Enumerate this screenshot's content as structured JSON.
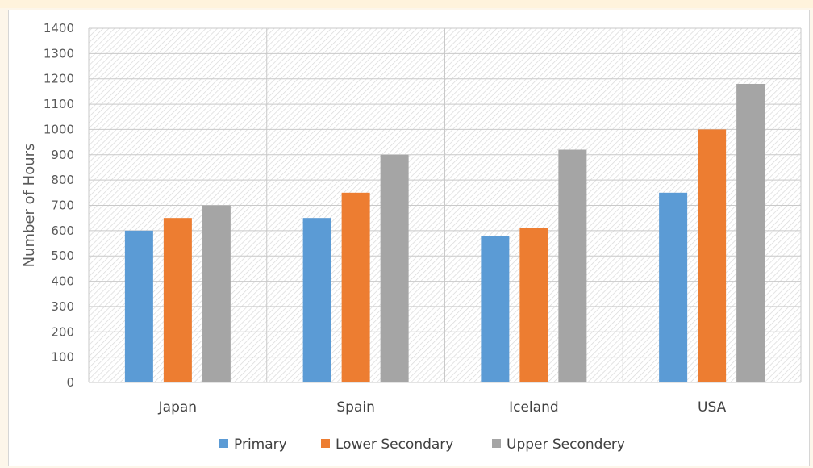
{
  "chart_data": {
    "type": "bar",
    "categories": [
      "Japan",
      "Spain",
      "Iceland",
      "USA"
    ],
    "series": [
      {
        "name": "Primary",
        "values": [
          600,
          650,
          580,
          750
        ],
        "color": "#5b9bd5"
      },
      {
        "name": "Lower Secondary",
        "values": [
          650,
          750,
          610,
          1000
        ],
        "color": "#ed7d31"
      },
      {
        "name": "Upper Secondery",
        "values": [
          700,
          900,
          920,
          1180
        ],
        "color": "#a5a5a5"
      }
    ],
    "ylabel": "Number of Hours",
    "xlabel": "",
    "ylim": [
      0,
      1400
    ],
    "yticks": [
      0,
      100,
      200,
      300,
      400,
      500,
      600,
      700,
      800,
      900,
      1000,
      1100,
      1200,
      1300,
      1400
    ],
    "grid": true,
    "legend_position": "bottom"
  }
}
